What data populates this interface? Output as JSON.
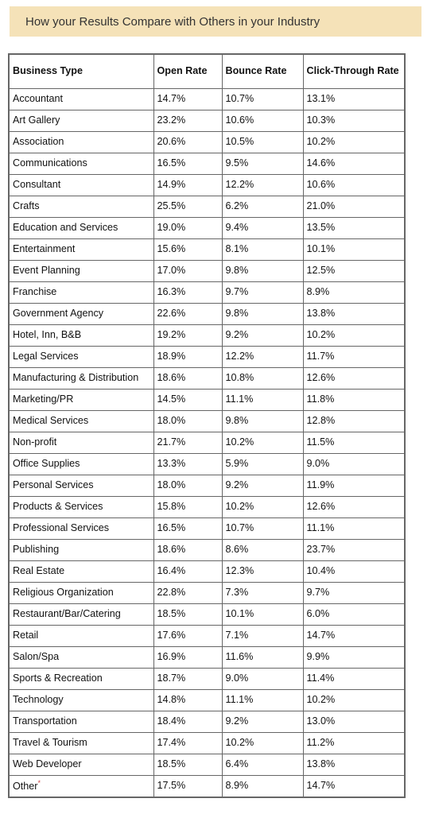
{
  "banner": {
    "title": "How your Results Compare with Others in your Industry"
  },
  "table": {
    "headers": [
      "Business Type",
      "Open Rate",
      "Bounce Rate",
      "Click-Through Rate"
    ],
    "rows": [
      [
        "Accountant",
        "14.7%",
        "10.7%",
        "13.1%"
      ],
      [
        "Art Gallery",
        "23.2%",
        "10.6%",
        "10.3%"
      ],
      [
        "Association",
        "20.6%",
        "10.5%",
        "10.2%"
      ],
      [
        "Communications",
        "16.5%",
        "9.5%",
        "14.6%"
      ],
      [
        "Consultant",
        "14.9%",
        "12.2%",
        "10.6%"
      ],
      [
        "Crafts",
        "25.5%",
        "6.2%",
        "21.0%"
      ],
      [
        "Education and Services",
        "19.0%",
        "9.4%",
        "13.5%"
      ],
      [
        "Entertainment",
        "15.6%",
        "8.1%",
        "10.1%"
      ],
      [
        "Event Planning",
        "17.0%",
        "9.8%",
        "12.5%"
      ],
      [
        "Franchise",
        "16.3%",
        "9.7%",
        "8.9%"
      ],
      [
        "Government Agency",
        "22.6%",
        "9.8%",
        "13.8%"
      ],
      [
        "Hotel, Inn, B&B",
        "19.2%",
        "9.2%",
        "10.2%"
      ],
      [
        "Legal Services",
        "18.9%",
        "12.2%",
        "11.7%"
      ],
      [
        "Manufacturing & Distribution",
        "18.6%",
        "10.8%",
        "12.6%"
      ],
      [
        "Marketing/PR",
        "14.5%",
        "11.1%",
        "11.8%"
      ],
      [
        "Medical Services",
        "18.0%",
        "9.8%",
        "12.8%"
      ],
      [
        "Non-profit",
        "21.7%",
        "10.2%",
        "11.5%"
      ],
      [
        "Office Supplies",
        "13.3%",
        "5.9%",
        "9.0%"
      ],
      [
        "Personal Services",
        "18.0%",
        "9.2%",
        "11.9%"
      ],
      [
        "Products & Services",
        "15.8%",
        "10.2%",
        "12.6%"
      ],
      [
        "Professional Services",
        "16.5%",
        "10.7%",
        "11.1%"
      ],
      [
        "Publishing",
        "18.6%",
        "8.6%",
        "23.7%"
      ],
      [
        "Real Estate",
        "16.4%",
        "12.3%",
        "10.4%"
      ],
      [
        "Religious Organization",
        "22.8%",
        "7.3%",
        "9.7%"
      ],
      [
        "Restaurant/Bar/Catering",
        "18.5%",
        "10.1%",
        "6.0%"
      ],
      [
        "Retail",
        "17.6%",
        "7.1%",
        "14.7%"
      ],
      [
        "Salon/Spa",
        "16.9%",
        "11.6%",
        "9.9%"
      ],
      [
        "Sports & Recreation",
        "18.7%",
        "9.0%",
        "11.4%"
      ],
      [
        "Technology",
        "14.8%",
        "11.1%",
        "10.2%"
      ],
      [
        "Transportation",
        "18.4%",
        "9.2%",
        "13.0%"
      ],
      [
        "Travel & Tourism",
        "17.4%",
        "10.2%",
        "11.2%"
      ],
      [
        "Web Developer",
        "18.5%",
        "6.4%",
        "13.8%"
      ],
      [
        "Other",
        "17.5%",
        "8.9%",
        "14.7%"
      ]
    ],
    "footnote_mark": "*"
  }
}
